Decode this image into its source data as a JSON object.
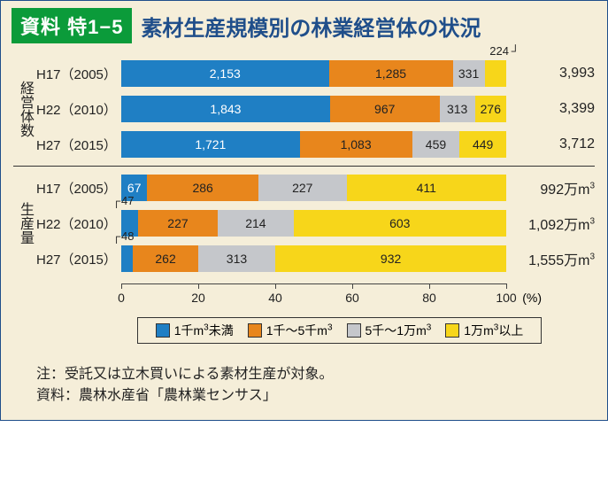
{
  "badge": "資料 特1−5",
  "title": "素材生産規模別の林業経営体の状況",
  "colors": {
    "c1": "#1f7fc4",
    "c2": "#e8861c",
    "c3": "#c5c7cb",
    "c4": "#f7d61a",
    "bg": "#f5eed9",
    "badge_bg": "#0b9b3a",
    "title_color": "#1f4e8a",
    "text_on_blue": "#ffffff",
    "text_on_other": "#222222"
  },
  "axis": {
    "min": 0,
    "max": 100,
    "step": 20,
    "unit_label": "(%)"
  },
  "legend": [
    {
      "key": "c1",
      "label": "1千m³未満"
    },
    {
      "key": "c2",
      "label": "1千〜5千m³"
    },
    {
      "key": "c3",
      "label": "5千〜1万m³"
    },
    {
      "key": "c4",
      "label": "1万m³以上"
    }
  ],
  "sections": [
    {
      "id": "count",
      "vlabel": "経営体数",
      "rows": [
        {
          "ylabel": "H17（2005）",
          "total": "3,993",
          "sum": 3993,
          "segments": [
            {
              "key": "c1",
              "value": 2153,
              "label": "2,153"
            },
            {
              "key": "c2",
              "value": 1285,
              "label": "1,285"
            },
            {
              "key": "c3",
              "value": 331,
              "label": "331"
            },
            {
              "key": "c4",
              "value": 224,
              "label": "224",
              "callout": true,
              "callout_pos": "above"
            }
          ]
        },
        {
          "ylabel": "H22（2010）",
          "total": "3,399",
          "sum": 3399,
          "segments": [
            {
              "key": "c1",
              "value": 1843,
              "label": "1,843"
            },
            {
              "key": "c2",
              "value": 967,
              "label": "967"
            },
            {
              "key": "c3",
              "value": 313,
              "label": "313"
            },
            {
              "key": "c4",
              "value": 276,
              "label": "276"
            }
          ]
        },
        {
          "ylabel": "H27（2015）",
          "total": "3,712",
          "sum": 3712,
          "segments": [
            {
              "key": "c1",
              "value": 1721,
              "label": "1,721"
            },
            {
              "key": "c2",
              "value": 1083,
              "label": "1,083"
            },
            {
              "key": "c3",
              "value": 459,
              "label": "459"
            },
            {
              "key": "c4",
              "value": 449,
              "label": "449"
            }
          ]
        }
      ]
    },
    {
      "id": "production",
      "vlabel": "生産量",
      "rows": [
        {
          "ylabel": "H17（2005）",
          "total": "992万m³",
          "sum": 991,
          "segments": [
            {
              "key": "c1",
              "value": 67,
              "label": "67"
            },
            {
              "key": "c2",
              "value": 286,
              "label": "286"
            },
            {
              "key": "c3",
              "value": 227,
              "label": "227"
            },
            {
              "key": "c4",
              "value": 411,
              "label": "411"
            }
          ]
        },
        {
          "ylabel": "H22（2010）",
          "total": "1,092万m³",
          "sum": 1091,
          "segments": [
            {
              "key": "c1",
              "value": 47,
              "label": "47",
              "callout": true,
              "callout_pos": "above-left"
            },
            {
              "key": "c2",
              "value": 227,
              "label": "227"
            },
            {
              "key": "c3",
              "value": 214,
              "label": "214"
            },
            {
              "key": "c4",
              "value": 603,
              "label": "603"
            }
          ]
        },
        {
          "ylabel": "H27（2015）",
          "total": "1,555万m³",
          "sum": 1555,
          "segments": [
            {
              "key": "c1",
              "value": 48,
              "label": "48",
              "callout": true,
              "callout_pos": "above-left"
            },
            {
              "key": "c2",
              "value": 262,
              "label": "262"
            },
            {
              "key": "c3",
              "value": 313,
              "label": "313"
            },
            {
              "key": "c4",
              "value": 932,
              "label": "932"
            }
          ]
        }
      ]
    }
  ],
  "footnote_label_1": "注：",
  "footnote_text_1": "受託又は立木買いによる素材生産が対象。",
  "footnote_label_2": "資料：",
  "footnote_text_2": "農林水産省「農林業センサス」"
}
